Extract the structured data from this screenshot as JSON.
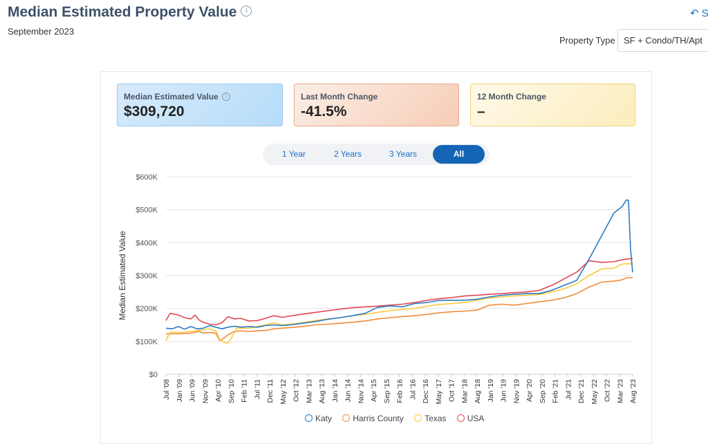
{
  "header": {
    "title": "Median Estimated Property Value",
    "subtitle": "September 2023",
    "share_label": "S",
    "info_icon": "i"
  },
  "filters": {
    "property_type_label": "Property Type",
    "property_type_value": "SF + Condo/TH/Apt"
  },
  "cards": {
    "median": {
      "label": "Median Estimated Value",
      "value": "$309,720"
    },
    "last_month": {
      "label": "Last Month Change",
      "value": "-41.5%"
    },
    "twelve_month": {
      "label": "12 Month Change",
      "value": "–"
    }
  },
  "tabs": [
    {
      "label": "1 Year",
      "active": false
    },
    {
      "label": "2 Years",
      "active": false
    },
    {
      "label": "3 Years",
      "active": false
    },
    {
      "label": "All",
      "active": true
    }
  ],
  "colors": {
    "katy": "#2b79c2",
    "harris": "#ef8c36",
    "texas": "#fcc93c",
    "usa": "#e2474f"
  },
  "chart_data": {
    "type": "line",
    "title": "",
    "xlabel": "",
    "ylabel": "Median Estimated Value",
    "ylim": [
      0,
      600000
    ],
    "y_ticks": [
      0,
      100000,
      200000,
      300000,
      400000,
      500000,
      600000
    ],
    "y_tick_labels": [
      "$0",
      "$100K",
      "$200K",
      "$300K",
      "$400K",
      "$500K",
      "$600K"
    ],
    "x_range": [
      "2008-07",
      "2023-09"
    ],
    "x_tick_labels": [
      "Jul '08",
      "Jan '09",
      "Jun '09",
      "Nov '09",
      "Apr '10",
      "Sep '10",
      "Feb '11",
      "Jul '11",
      "Dec '11",
      "May '12",
      "Oct '12",
      "Mar '13",
      "Aug '13",
      "Jan '14",
      "Jun '14",
      "Nov '14",
      "Apr '15",
      "Sep '15",
      "Feb '16",
      "Jul '16",
      "Dec '16",
      "May '17",
      "Oct '17",
      "Mar '18",
      "Aug '18",
      "Jan '19",
      "Jun '19",
      "Nov '19",
      "Apr '20",
      "Sep '20",
      "Feb '21",
      "Jul '21",
      "Dec '21",
      "May '22",
      "Oct '22",
      "Mar '23",
      "Aug '23"
    ],
    "legend_position": "bottom-center",
    "series": [
      {
        "name": "Katy",
        "color_key": "katy",
        "points": [
          [
            0,
            140000
          ],
          [
            3,
            138000
          ],
          [
            6,
            145000
          ],
          [
            9,
            137000
          ],
          [
            12,
            145000
          ],
          [
            15,
            138000
          ],
          [
            18,
            140000
          ],
          [
            21,
            148000
          ],
          [
            24,
            143000
          ],
          [
            27,
            138000
          ],
          [
            30,
            143000
          ],
          [
            33,
            146000
          ],
          [
            36,
            143000
          ],
          [
            40,
            145000
          ],
          [
            44,
            143000
          ],
          [
            48,
            148000
          ],
          [
            52,
            150000
          ],
          [
            56,
            148000
          ],
          [
            60,
            150000
          ],
          [
            66,
            155000
          ],
          [
            72,
            160000
          ],
          [
            78,
            167000
          ],
          [
            84,
            172000
          ],
          [
            90,
            178000
          ],
          [
            96,
            185000
          ],
          [
            102,
            203000
          ],
          [
            108,
            208000
          ],
          [
            114,
            205000
          ],
          [
            120,
            215000
          ],
          [
            126,
            218000
          ],
          [
            132,
            225000
          ],
          [
            138,
            225000
          ],
          [
            144,
            225000
          ],
          [
            150,
            228000
          ],
          [
            156,
            235000
          ],
          [
            162,
            240000
          ],
          [
            168,
            243000
          ],
          [
            174,
            245000
          ],
          [
            180,
            245000
          ],
          [
            186,
            255000
          ],
          [
            192,
            270000
          ],
          [
            198,
            285000
          ],
          [
            204,
            350000
          ],
          [
            210,
            420000
          ],
          [
            216,
            490000
          ],
          [
            218,
            500000
          ],
          [
            220,
            510000
          ],
          [
            222,
            530000
          ],
          [
            223,
            528000
          ],
          [
            224,
            380000
          ],
          [
            225,
            309720
          ]
        ]
      },
      {
        "name": "Harris County",
        "color_key": "harris",
        "points": [
          [
            0,
            123000
          ],
          [
            6,
            123000
          ],
          [
            12,
            125000
          ],
          [
            16,
            130000
          ],
          [
            18,
            125000
          ],
          [
            21,
            127000
          ],
          [
            24,
            125000
          ],
          [
            26,
            102000
          ],
          [
            28,
            110000
          ],
          [
            30,
            120000
          ],
          [
            33,
            130000
          ],
          [
            36,
            132000
          ],
          [
            40,
            130000
          ],
          [
            44,
            132000
          ],
          [
            48,
            133000
          ],
          [
            52,
            138000
          ],
          [
            56,
            140000
          ],
          [
            60,
            142000
          ],
          [
            66,
            145000
          ],
          [
            72,
            150000
          ],
          [
            78,
            152000
          ],
          [
            84,
            155000
          ],
          [
            90,
            158000
          ],
          [
            96,
            162000
          ],
          [
            102,
            168000
          ],
          [
            108,
            172000
          ],
          [
            114,
            175000
          ],
          [
            120,
            178000
          ],
          [
            126,
            182000
          ],
          [
            132,
            187000
          ],
          [
            138,
            190000
          ],
          [
            144,
            192000
          ],
          [
            150,
            195000
          ],
          [
            156,
            210000
          ],
          [
            162,
            213000
          ],
          [
            168,
            210000
          ],
          [
            174,
            215000
          ],
          [
            180,
            220000
          ],
          [
            186,
            225000
          ],
          [
            192,
            232000
          ],
          [
            198,
            245000
          ],
          [
            204,
            265000
          ],
          [
            210,
            280000
          ],
          [
            216,
            283000
          ],
          [
            220,
            287000
          ],
          [
            222,
            293000
          ],
          [
            225,
            293000
          ]
        ]
      },
      {
        "name": "Texas",
        "color_key": "texas",
        "points": [
          [
            0,
            102000
          ],
          [
            2,
            128000
          ],
          [
            6,
            127000
          ],
          [
            12,
            130000
          ],
          [
            18,
            135000
          ],
          [
            21,
            138000
          ],
          [
            24,
            132000
          ],
          [
            26,
            105000
          ],
          [
            28,
            97000
          ],
          [
            30,
            95000
          ],
          [
            32,
            115000
          ],
          [
            34,
            140000
          ],
          [
            40,
            140000
          ],
          [
            44,
            145000
          ],
          [
            48,
            150000
          ],
          [
            52,
            156000
          ],
          [
            56,
            150000
          ],
          [
            60,
            152000
          ],
          [
            66,
            157000
          ],
          [
            72,
            163000
          ],
          [
            78,
            168000
          ],
          [
            84,
            172000
          ],
          [
            90,
            178000
          ],
          [
            96,
            182000
          ],
          [
            102,
            188000
          ],
          [
            108,
            193000
          ],
          [
            114,
            197000
          ],
          [
            120,
            200000
          ],
          [
            126,
            207000
          ],
          [
            132,
            212000
          ],
          [
            138,
            215000
          ],
          [
            144,
            218000
          ],
          [
            150,
            225000
          ],
          [
            156,
            232000
          ],
          [
            162,
            235000
          ],
          [
            168,
            238000
          ],
          [
            174,
            240000
          ],
          [
            180,
            242000
          ],
          [
            186,
            250000
          ],
          [
            192,
            260000
          ],
          [
            198,
            275000
          ],
          [
            204,
            300000
          ],
          [
            210,
            320000
          ],
          [
            216,
            322000
          ],
          [
            220,
            335000
          ],
          [
            225,
            336000
          ]
        ]
      },
      {
        "name": "USA",
        "color_key": "usa",
        "points": [
          [
            0,
            163000
          ],
          [
            2,
            185000
          ],
          [
            6,
            180000
          ],
          [
            9,
            172000
          ],
          [
            12,
            168000
          ],
          [
            14,
            180000
          ],
          [
            16,
            165000
          ],
          [
            18,
            158000
          ],
          [
            21,
            152000
          ],
          [
            24,
            150000
          ],
          [
            27,
            157000
          ],
          [
            30,
            175000
          ],
          [
            33,
            168000
          ],
          [
            36,
            170000
          ],
          [
            40,
            162000
          ],
          [
            44,
            163000
          ],
          [
            48,
            170000
          ],
          [
            52,
            178000
          ],
          [
            56,
            173000
          ],
          [
            60,
            177000
          ],
          [
            66,
            183000
          ],
          [
            72,
            188000
          ],
          [
            78,
            193000
          ],
          [
            84,
            198000
          ],
          [
            90,
            202000
          ],
          [
            96,
            205000
          ],
          [
            102,
            207000
          ],
          [
            108,
            210000
          ],
          [
            114,
            213000
          ],
          [
            120,
            218000
          ],
          [
            126,
            225000
          ],
          [
            132,
            230000
          ],
          [
            138,
            233000
          ],
          [
            144,
            238000
          ],
          [
            150,
            240000
          ],
          [
            156,
            243000
          ],
          [
            162,
            245000
          ],
          [
            168,
            248000
          ],
          [
            174,
            250000
          ],
          [
            180,
            255000
          ],
          [
            186,
            270000
          ],
          [
            192,
            290000
          ],
          [
            198,
            310000
          ],
          [
            204,
            345000
          ],
          [
            210,
            340000
          ],
          [
            216,
            342000
          ],
          [
            220,
            348000
          ],
          [
            225,
            352000
          ]
        ]
      }
    ]
  }
}
